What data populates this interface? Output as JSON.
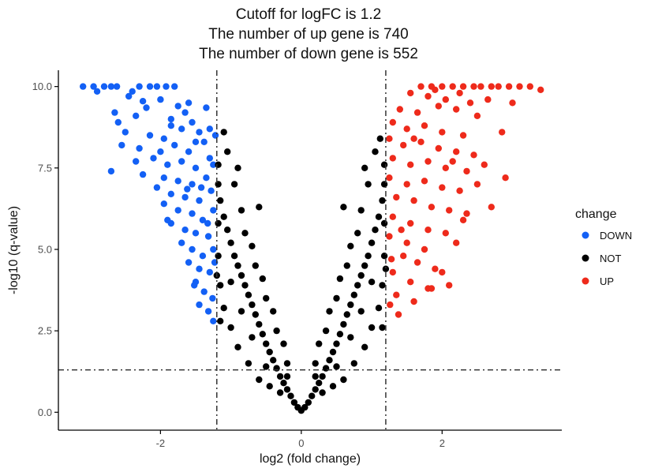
{
  "chart_data": {
    "type": "scatter",
    "title_lines": [
      "Cutoff for logFC is 1.2",
      "The number of up gene is 740",
      "The number of down gene is 552"
    ],
    "xlabel": "log2 (fold change)",
    "ylabel": "-log10 (q-value)",
    "xlim": [
      -3.45,
      3.7
    ],
    "ylim": [
      -0.55,
      10.5
    ],
    "x_ticks": [
      {
        "value": -2,
        "label": "-2"
      },
      {
        "value": 0,
        "label": "0"
      },
      {
        "value": 2,
        "label": "2"
      }
    ],
    "y_ticks": [
      {
        "value": 0,
        "label": "0.0"
      },
      {
        "value": 2.5,
        "label": "2.5"
      },
      {
        "value": 5,
        "label": "5.0"
      },
      {
        "value": 7.5,
        "label": "7.5"
      },
      {
        "value": 10,
        "label": "10.0"
      }
    ],
    "grid": false,
    "legend_placement": "right",
    "legend_title": "change",
    "cutoffs": {
      "logFC": 1.2,
      "neg_log10_q": 1.3
    },
    "counts": {
      "up": 740,
      "down": 552
    },
    "series": [
      {
        "name": "DOWN",
        "color": "#1360F5",
        "points": [
          [
            -3.1,
            10.0
          ],
          [
            -2.95,
            10.0
          ],
          [
            -2.8,
            10.0
          ],
          [
            -2.7,
            10.0
          ],
          [
            -2.62,
            10.0
          ],
          [
            -2.3,
            10.0
          ],
          [
            -2.15,
            10.0
          ],
          [
            -2.05,
            10.0
          ],
          [
            -1.92,
            10.0
          ],
          [
            -1.8,
            10.0
          ],
          [
            -2.9,
            9.85
          ],
          [
            -2.45,
            9.7
          ],
          [
            -2.25,
            9.55
          ],
          [
            -2.0,
            9.6
          ],
          [
            -1.75,
            9.4
          ],
          [
            -1.6,
            9.5
          ],
          [
            -2.65,
            9.2
          ],
          [
            -2.35,
            9.1
          ],
          [
            -1.85,
            9.0
          ],
          [
            -1.55,
            8.9
          ],
          [
            -2.5,
            8.6
          ],
          [
            -2.15,
            8.5
          ],
          [
            -1.95,
            8.4
          ],
          [
            -1.7,
            8.7
          ],
          [
            -1.45,
            8.6
          ],
          [
            -1.3,
            8.7
          ],
          [
            -2.55,
            8.2
          ],
          [
            -2.3,
            8.1
          ],
          [
            -2.0,
            8.0
          ],
          [
            -1.8,
            8.2
          ],
          [
            -1.6,
            8.0
          ],
          [
            -1.38,
            8.3
          ],
          [
            -2.1,
            7.8
          ],
          [
            -1.9,
            7.6
          ],
          [
            -1.7,
            7.7
          ],
          [
            -1.5,
            7.5
          ],
          [
            -1.3,
            7.8
          ],
          [
            -2.7,
            7.4
          ],
          [
            -2.25,
            7.3
          ],
          [
            -1.95,
            7.2
          ],
          [
            -1.75,
            7.1
          ],
          [
            -1.55,
            7.0
          ],
          [
            -1.35,
            7.2
          ],
          [
            -2.05,
            6.9
          ],
          [
            -1.85,
            6.7
          ],
          [
            -1.65,
            6.6
          ],
          [
            -1.45,
            6.5
          ],
          [
            -1.28,
            6.8
          ],
          [
            -1.95,
            6.4
          ],
          [
            -1.75,
            6.2
          ],
          [
            -1.55,
            6.1
          ],
          [
            -1.4,
            5.9
          ],
          [
            -1.25,
            6.2
          ],
          [
            -1.85,
            5.8
          ],
          [
            -1.65,
            5.6
          ],
          [
            -1.5,
            5.5
          ],
          [
            -1.32,
            5.4
          ],
          [
            -1.7,
            5.2
          ],
          [
            -1.55,
            5.0
          ],
          [
            -1.4,
            4.8
          ],
          [
            -1.25,
            5.0
          ],
          [
            -1.6,
            4.6
          ],
          [
            -1.45,
            4.4
          ],
          [
            -1.3,
            4.3
          ],
          [
            -1.5,
            4.0
          ],
          [
            -1.38,
            3.7
          ],
          [
            -1.26,
            3.5
          ],
          [
            -1.45,
            3.3
          ],
          [
            -1.32,
            3.1
          ],
          [
            -1.25,
            2.8
          ],
          [
            -2.4,
            9.85
          ],
          [
            -2.2,
            9.35
          ],
          [
            -2.6,
            8.9
          ],
          [
            -1.65,
            9.2
          ],
          [
            -1.35,
            9.35
          ],
          [
            -2.35,
            7.7
          ],
          [
            -1.85,
            8.8
          ],
          [
            -1.5,
            8.3
          ],
          [
            -1.25,
            7.6
          ],
          [
            -1.22,
            8.5
          ],
          [
            -1.62,
            6.85
          ],
          [
            -1.42,
            6.9
          ],
          [
            -1.9,
            5.9
          ],
          [
            -1.33,
            5.8
          ],
          [
            -1.23,
            4.6
          ],
          [
            -1.52,
            3.9
          ]
        ]
      },
      {
        "name": "NOT",
        "color": "#000000",
        "points": [
          [
            0.0,
            0.05
          ],
          [
            0.05,
            0.15
          ],
          [
            -0.05,
            0.15
          ],
          [
            0.1,
            0.3
          ],
          [
            -0.1,
            0.3
          ],
          [
            0.15,
            0.5
          ],
          [
            -0.15,
            0.5
          ],
          [
            0.2,
            0.7
          ],
          [
            -0.2,
            0.7
          ],
          [
            0.25,
            0.9
          ],
          [
            -0.25,
            0.9
          ],
          [
            0.3,
            1.1
          ],
          [
            -0.3,
            1.1
          ],
          [
            0.35,
            1.35
          ],
          [
            -0.35,
            1.35
          ],
          [
            0.4,
            1.6
          ],
          [
            -0.4,
            1.6
          ],
          [
            0.45,
            1.85
          ],
          [
            -0.45,
            1.85
          ],
          [
            0.5,
            2.1
          ],
          [
            -0.5,
            2.1
          ],
          [
            0.55,
            2.4
          ],
          [
            -0.55,
            2.4
          ],
          [
            0.6,
            2.7
          ],
          [
            -0.6,
            2.7
          ],
          [
            0.65,
            3.0
          ],
          [
            -0.65,
            3.0
          ],
          [
            0.7,
            3.3
          ],
          [
            -0.7,
            3.3
          ],
          [
            0.75,
            3.6
          ],
          [
            -0.75,
            3.6
          ],
          [
            0.8,
            3.9
          ],
          [
            -0.8,
            3.9
          ],
          [
            0.85,
            4.2
          ],
          [
            -0.85,
            4.2
          ],
          [
            0.9,
            4.5
          ],
          [
            -0.9,
            4.5
          ],
          [
            0.95,
            4.8
          ],
          [
            -0.95,
            4.8
          ],
          [
            1.0,
            5.2
          ],
          [
            -1.0,
            5.2
          ],
          [
            1.05,
            5.6
          ],
          [
            -1.05,
            5.6
          ],
          [
            1.1,
            6.0
          ],
          [
            -1.1,
            6.0
          ],
          [
            1.15,
            6.5
          ],
          [
            -1.15,
            6.5
          ],
          [
            1.18,
            7.0
          ],
          [
            -1.18,
            7.0
          ],
          [
            1.18,
            7.6
          ],
          [
            -1.18,
            7.6
          ],
          [
            0.95,
            7.0
          ],
          [
            -0.95,
            7.0
          ],
          [
            0.9,
            7.5
          ],
          [
            -0.9,
            7.5
          ],
          [
            1.05,
            8.0
          ],
          [
            -1.05,
            8.0
          ],
          [
            -1.1,
            8.6
          ],
          [
            -0.6,
            6.3
          ],
          [
            0.6,
            6.3
          ],
          [
            0.2,
            1.5
          ],
          [
            -0.2,
            1.5
          ],
          [
            0.35,
            2.5
          ],
          [
            -0.35,
            2.5
          ],
          [
            0.5,
            3.5
          ],
          [
            -0.5,
            3.5
          ],
          [
            0.65,
            4.5
          ],
          [
            -0.65,
            4.5
          ],
          [
            0.8,
            5.5
          ],
          [
            -0.8,
            5.5
          ],
          [
            0.3,
            0.6
          ],
          [
            -0.3,
            0.6
          ],
          [
            0.45,
            0.8
          ],
          [
            -0.45,
            0.8
          ],
          [
            0.6,
            1.0
          ],
          [
            -0.6,
            1.0
          ],
          [
            0.75,
            1.5
          ],
          [
            -0.75,
            1.5
          ],
          [
            0.9,
            2.0
          ],
          [
            -0.9,
            2.0
          ],
          [
            1.0,
            2.6
          ],
          [
            -1.0,
            2.6
          ],
          [
            1.1,
            3.2
          ],
          [
            -1.1,
            3.2
          ],
          [
            1.15,
            3.9
          ],
          [
            -1.15,
            3.9
          ],
          [
            1.18,
            4.8
          ],
          [
            -1.18,
            4.8
          ],
          [
            1.18,
            5.8
          ],
          [
            -1.18,
            5.8
          ],
          [
            0.25,
            2.1
          ],
          [
            -0.25,
            2.1
          ],
          [
            0.4,
            3.1
          ],
          [
            -0.4,
            3.1
          ],
          [
            0.55,
            4.1
          ],
          [
            -0.55,
            4.1
          ],
          [
            0.7,
            5.1
          ],
          [
            -0.7,
            5.1
          ],
          [
            0.85,
            6.2
          ],
          [
            -0.85,
            6.2
          ],
          [
            1.12,
            8.4
          ],
          [
            -0.2,
            1.1
          ],
          [
            0.2,
            1.1
          ],
          [
            0.5,
            1.4
          ],
          [
            -0.5,
            1.4
          ],
          [
            0.7,
            2.3
          ],
          [
            -0.7,
            2.3
          ],
          [
            0.85,
            3.1
          ],
          [
            -0.85,
            3.1
          ],
          [
            1.0,
            4.0
          ],
          [
            -1.0,
            4.0
          ],
          [
            -1.15,
            2.8
          ],
          [
            1.15,
            2.6
          ],
          [
            -1.2,
            4.2
          ],
          [
            1.2,
            4.4
          ]
        ]
      },
      {
        "name": "UP",
        "color": "#EE2A1B",
        "points": [
          [
            1.7,
            10.0
          ],
          [
            1.85,
            10.0
          ],
          [
            2.0,
            10.0
          ],
          [
            2.15,
            10.0
          ],
          [
            2.3,
            10.0
          ],
          [
            2.45,
            10.0
          ],
          [
            2.55,
            10.0
          ],
          [
            2.7,
            10.0
          ],
          [
            2.8,
            10.0
          ],
          [
            2.95,
            10.0
          ],
          [
            3.1,
            10.0
          ],
          [
            3.25,
            10.0
          ],
          [
            3.4,
            9.9
          ],
          [
            1.55,
            9.8
          ],
          [
            1.8,
            9.7
          ],
          [
            2.05,
            9.6
          ],
          [
            2.25,
            9.8
          ],
          [
            1.4,
            9.3
          ],
          [
            1.65,
            9.2
          ],
          [
            1.95,
            9.4
          ],
          [
            2.2,
            9.3
          ],
          [
            2.5,
            9.1
          ],
          [
            1.3,
            8.9
          ],
          [
            1.5,
            8.7
          ],
          [
            1.75,
            8.8
          ],
          [
            2.0,
            8.6
          ],
          [
            2.3,
            8.5
          ],
          [
            2.85,
            8.6
          ],
          [
            1.25,
            8.4
          ],
          [
            1.45,
            8.2
          ],
          [
            1.7,
            8.3
          ],
          [
            1.95,
            8.1
          ],
          [
            2.2,
            8.0
          ],
          [
            2.45,
            7.9
          ],
          [
            1.3,
            7.8
          ],
          [
            1.55,
            7.6
          ],
          [
            1.8,
            7.7
          ],
          [
            2.05,
            7.5
          ],
          [
            2.35,
            7.4
          ],
          [
            2.6,
            7.6
          ],
          [
            1.25,
            7.2
          ],
          [
            1.5,
            7.0
          ],
          [
            1.75,
            7.1
          ],
          [
            2.0,
            6.9
          ],
          [
            2.25,
            6.8
          ],
          [
            2.5,
            7.0
          ],
          [
            1.35,
            6.6
          ],
          [
            1.6,
            6.5
          ],
          [
            1.85,
            6.3
          ],
          [
            2.1,
            6.2
          ],
          [
            2.35,
            6.1
          ],
          [
            2.7,
            6.3
          ],
          [
            1.3,
            6.0
          ],
          [
            1.55,
            5.8
          ],
          [
            1.8,
            5.6
          ],
          [
            2.05,
            5.5
          ],
          [
            2.3,
            5.9
          ],
          [
            1.25,
            5.4
          ],
          [
            1.5,
            5.2
          ],
          [
            1.75,
            5.0
          ],
          [
            1.45,
            4.8
          ],
          [
            1.65,
            4.6
          ],
          [
            1.9,
            4.4
          ],
          [
            1.3,
            4.3
          ],
          [
            1.55,
            4.0
          ],
          [
            1.8,
            3.8
          ],
          [
            1.35,
            3.6
          ],
          [
            1.6,
            3.4
          ],
          [
            1.85,
            3.8
          ],
          [
            1.38,
            3.0
          ],
          [
            1.26,
            3.3
          ],
          [
            2.1,
            3.9
          ],
          [
            2.65,
            9.6
          ],
          [
            3.0,
            9.5
          ],
          [
            1.9,
            9.9
          ],
          [
            2.4,
            9.5
          ],
          [
            1.6,
            8.4
          ],
          [
            2.15,
            7.7
          ],
          [
            2.9,
            7.2
          ],
          [
            1.42,
            5.6
          ],
          [
            1.28,
            4.7
          ],
          [
            2.0,
            4.3
          ],
          [
            2.2,
            5.2
          ]
        ]
      }
    ]
  }
}
